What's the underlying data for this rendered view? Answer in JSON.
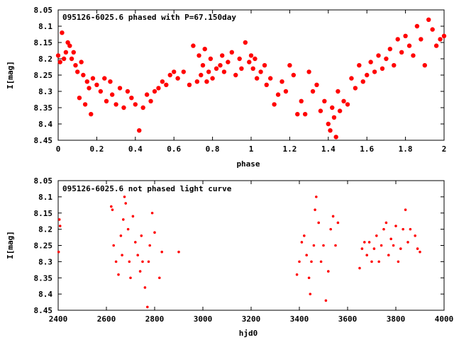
{
  "colors": {
    "points": "#ff0000",
    "axes": "#000000",
    "background": "#ffffff"
  },
  "chart_data": [
    {
      "type": "scatter",
      "title": "095126-6025.6 phased with P=67.150day",
      "xlabel": "phase",
      "ylabel": "I[mag]",
      "xlim": [
        0,
        2
      ],
      "ylim": [
        8.45,
        8.05
      ],
      "y_inverted": true,
      "grid": false,
      "xticks": [
        "0",
        "0.2",
        "0.4",
        "0.6",
        "0.8",
        "1",
        "1.2",
        "1.4",
        "1.6",
        "1.8",
        "2"
      ],
      "yticks": [
        "8.05",
        "8.1",
        "8.15",
        "8.2",
        "8.25",
        "8.3",
        "8.35",
        "8.4",
        "8.45"
      ],
      "x": [
        0.0,
        0.01,
        0.02,
        0.03,
        0.04,
        0.05,
        0.06,
        0.07,
        0.08,
        0.09,
        0.1,
        0.11,
        0.12,
        0.13,
        0.14,
        0.15,
        0.16,
        0.17,
        0.18,
        0.2,
        0.22,
        0.24,
        0.25,
        0.27,
        0.28,
        0.3,
        0.32,
        0.34,
        0.36,
        0.38,
        0.4,
        0.42,
        0.44,
        0.46,
        0.48,
        0.5,
        0.52,
        0.54,
        0.56,
        0.58,
        0.6,
        0.62,
        0.65,
        0.68,
        0.7,
        0.72,
        0.73,
        0.74,
        0.75,
        0.76,
        0.77,
        0.78,
        0.79,
        0.8,
        0.82,
        0.84,
        0.85,
        0.86,
        0.88,
        0.9,
        0.92,
        0.94,
        0.95,
        0.97,
        0.99,
        1.0,
        1.01,
        1.02,
        1.03,
        1.05,
        1.07,
        1.08,
        1.1,
        1.12,
        1.14,
        1.16,
        1.18,
        1.2,
        1.22,
        1.24,
        1.26,
        1.28,
        1.3,
        1.32,
        1.34,
        1.36,
        1.38,
        1.4,
        1.41,
        1.42,
        1.43,
        1.44,
        1.45,
        1.46,
        1.48,
        1.5,
        1.52,
        1.54,
        1.56,
        1.58,
        1.6,
        1.62,
        1.64,
        1.66,
        1.68,
        1.7,
        1.72,
        1.74,
        1.76,
        1.78,
        1.8,
        1.82,
        1.84,
        1.86,
        1.88,
        1.9,
        1.92,
        1.94,
        1.96,
        1.98,
        2.0
      ],
      "y": [
        8.19,
        8.21,
        8.12,
        8.2,
        8.18,
        8.15,
        8.16,
        8.2,
        8.18,
        8.22,
        8.24,
        8.32,
        8.21,
        8.25,
        8.34,
        8.27,
        8.29,
        8.37,
        8.26,
        8.28,
        8.3,
        8.26,
        8.33,
        8.27,
        8.31,
        8.34,
        8.29,
        8.35,
        8.3,
        8.32,
        8.34,
        8.42,
        8.35,
        8.31,
        8.33,
        8.3,
        8.29,
        8.27,
        8.28,
        8.25,
        8.24,
        8.26,
        8.24,
        8.28,
        8.16,
        8.27,
        8.19,
        8.25,
        8.22,
        8.17,
        8.27,
        8.24,
        8.2,
        8.26,
        8.23,
        8.22,
        8.19,
        8.24,
        8.21,
        8.18,
        8.25,
        8.2,
        8.23,
        8.15,
        8.21,
        8.19,
        8.23,
        8.2,
        8.26,
        8.24,
        8.22,
        8.28,
        8.26,
        8.34,
        8.31,
        8.27,
        8.3,
        8.22,
        8.25,
        8.37,
        8.33,
        8.37,
        8.24,
        8.3,
        8.28,
        8.36,
        8.33,
        8.4,
        8.42,
        8.35,
        8.38,
        8.44,
        8.3,
        8.36,
        8.33,
        8.34,
        8.26,
        8.29,
        8.22,
        8.27,
        8.25,
        8.21,
        8.24,
        8.19,
        8.23,
        8.2,
        8.17,
        8.22,
        8.14,
        8.18,
        8.13,
        8.16,
        8.19,
        8.1,
        8.14,
        8.22,
        8.08,
        8.11,
        8.16,
        8.14,
        8.13
      ]
    },
    {
      "type": "scatter",
      "title": "095126-6025.6 not phased light curve",
      "xlabel": "hjd0",
      "ylabel": "I[mag]",
      "xlim": [
        2400,
        4000
      ],
      "ylim": [
        8.45,
        8.05
      ],
      "y_inverted": true,
      "grid": false,
      "xticks": [
        "2400",
        "2600",
        "2800",
        "3000",
        "3200",
        "3400",
        "3600",
        "3800",
        "4000"
      ],
      "yticks": [
        "8.05",
        "8.1",
        "8.15",
        "8.2",
        "8.25",
        "8.3",
        "8.35",
        "8.4",
        "8.45"
      ],
      "x": [
        2402,
        2405,
        2408,
        2620,
        2625,
        2630,
        2640,
        2650,
        2660,
        2665,
        2670,
        2675,
        2680,
        2690,
        2695,
        2700,
        2710,
        2720,
        2730,
        2740,
        2745,
        2750,
        2760,
        2770,
        2775,
        2780,
        2790,
        2800,
        2820,
        2830,
        2900,
        3390,
        3400,
        3410,
        3420,
        3430,
        3440,
        3445,
        3450,
        3460,
        3465,
        3470,
        3480,
        3490,
        3500,
        3510,
        3520,
        3530,
        3540,
        3550,
        3560,
        3650,
        3660,
        3670,
        3680,
        3690,
        3700,
        3710,
        3720,
        3730,
        3740,
        3750,
        3760,
        3770,
        3780,
        3790,
        3800,
        3810,
        3820,
        3830,
        3840,
        3850,
        3860,
        3880,
        3890,
        3900
      ],
      "y": [
        8.27,
        8.17,
        8.19,
        8.13,
        8.14,
        8.25,
        8.3,
        8.34,
        8.22,
        8.28,
        8.17,
        8.1,
        8.12,
        8.2,
        8.3,
        8.35,
        8.16,
        8.24,
        8.28,
        8.33,
        8.22,
        8.3,
        8.38,
        8.44,
        8.3,
        8.25,
        8.15,
        8.21,
        8.35,
        8.27,
        8.27,
        8.34,
        8.3,
        8.24,
        8.22,
        8.28,
        8.35,
        8.4,
        8.3,
        8.25,
        8.14,
        8.1,
        8.18,
        8.3,
        8.25,
        8.42,
        8.33,
        8.2,
        8.16,
        8.25,
        8.18,
        8.32,
        8.26,
        8.24,
        8.28,
        8.24,
        8.3,
        8.26,
        8.22,
        8.3,
        8.25,
        8.2,
        8.18,
        8.28,
        8.23,
        8.25,
        8.19,
        8.3,
        8.26,
        8.2,
        8.14,
        8.24,
        8.2,
        8.22,
        8.26,
        8.27
      ]
    }
  ]
}
